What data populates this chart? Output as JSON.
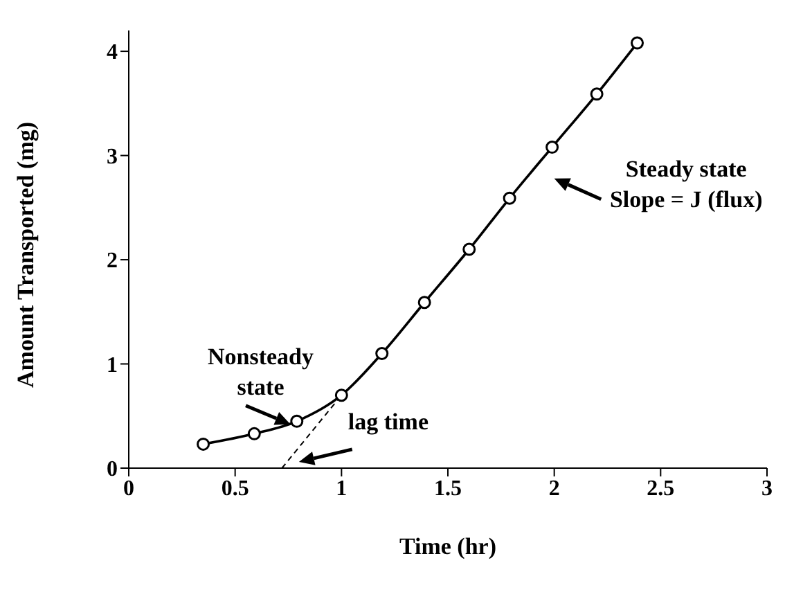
{
  "chart_data": {
    "type": "line",
    "xlabel": "Time (hr)",
    "ylabel": "Amount Transported (mg)",
    "xlim": [
      0,
      3
    ],
    "xticks": [
      0,
      0.5,
      1,
      1.5,
      2,
      2.5,
      3
    ],
    "ylim": [
      0,
      4.2
    ],
    "yticks": [
      0,
      1,
      2,
      3,
      4
    ],
    "series": [
      {
        "color": "#000000",
        "marker": "circle",
        "line_style": "solid",
        "x": [
          0.35,
          0.59,
          0.79,
          1.0,
          1.19,
          1.39,
          1.6,
          1.79,
          1.99,
          2.2,
          2.39
        ],
        "values": [
          0.23,
          0.33,
          0.45,
          0.7,
          1.1,
          1.59,
          2.1,
          2.59,
          3.08,
          3.59,
          4.08
        ]
      },
      {
        "color": "#000000",
        "marker": "none",
        "line_style": "dashed",
        "x": [
          0.72,
          1.0
        ],
        "values": [
          0,
          0.7
        ]
      }
    ],
    "annotations": [
      "Nonsteady state",
      "lag time",
      "Steady state Slope = J (flux)"
    ],
    "grid": false,
    "legend": false
  }
}
